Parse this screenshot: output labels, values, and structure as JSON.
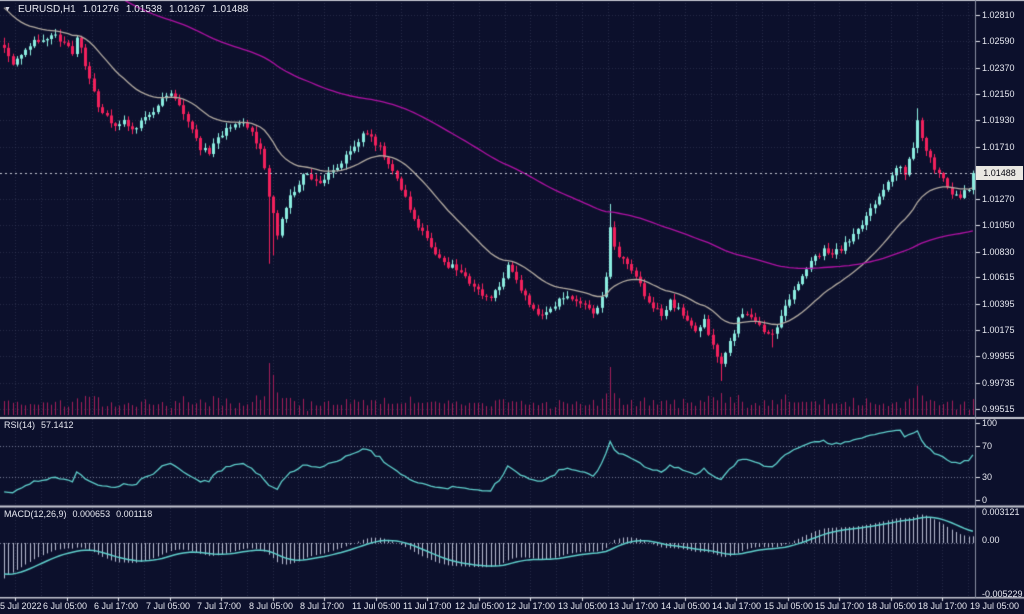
{
  "title_bar": {
    "marker": "▼",
    "symbol": "EURUSD,H1",
    "open": "1.01276",
    "high": "1.01538",
    "low": "1.01267",
    "close": "1.01488"
  },
  "colors": {
    "background": "#0c102c",
    "grid": "#43486680",
    "grid_solid": "#454a66",
    "bull": "#8bede0",
    "bear": "#f2215c",
    "volume": "#a31e58",
    "ma_fast": "#b3aba1",
    "ma_slow": "#b112a5",
    "indicator_line": "#5fcfcc",
    "macd_histogram": "#b9bdd2",
    "level_line": "#787d97",
    "separator": "#c7c9d3",
    "axis_border": "#898ea2",
    "axis_text": "#e7e8f0",
    "price_tag_bg": "#e9e7e2",
    "price_tag_text": "#05050f",
    "current_price_line": "#c3c6d2"
  },
  "chart_data": {
    "type": "candlestick",
    "title": "EURUSD,H1",
    "pair": "EURUSD",
    "timeframe": "H1",
    "ohlc_display": {
      "open": 1.01276,
      "high": 1.01538,
      "low": 1.01267,
      "close": 1.01488
    },
    "current_price": {
      "label": "1.01488",
      "value": 1.01488
    },
    "price_axis_ticks": [
      "1.02810",
      "1.02590",
      "1.02370",
      "1.02150",
      "1.01930",
      "1.01710",
      "1.01270",
      "1.01050",
      "1.00830",
      "1.00615",
      "1.00395",
      "1.00175",
      "0.99955",
      "0.99735",
      "0.99515"
    ],
    "x_labels": [
      "5 Jul 2022",
      "6 Jul 05:00",
      "6 Jul 17:00",
      "7 Jul 05:00",
      "7 Jul 17:00",
      "8 Jul 05:00",
      "8 Jul 17:00",
      "11 Jul 05:00",
      "11 Jul 17:00",
      "12 Jul 05:00",
      "12 Jul 17:00",
      "13 Jul 05:00",
      "13 Jul 17:00",
      "14 Jul 05:00",
      "14 Jul 17:00",
      "15 Jul 05:00",
      "15 Jul 17:00",
      "18 Jul 05:00",
      "18 Jul 17:00",
      "19 Jul 05:00"
    ],
    "candles": {
      "count": 228,
      "first_open": 1.0256,
      "anchor_closes": [
        [
          0,
          1.0252
        ],
        [
          2,
          1.0242
        ],
        [
          4,
          1.0247
        ],
        [
          7,
          1.0259
        ],
        [
          10,
          1.0262
        ],
        [
          12,
          1.0266
        ],
        [
          14,
          1.0256
        ],
        [
          16,
          1.025
        ],
        [
          17,
          1.0264
        ],
        [
          19,
          1.024
        ],
        [
          20,
          1.0228
        ],
        [
          22,
          1.0205
        ],
        [
          24,
          1.0196
        ],
        [
          26,
          1.0189
        ],
        [
          28,
          1.0194
        ],
        [
          30,
          1.0184
        ],
        [
          32,
          1.0191
        ],
        [
          34,
          1.0196
        ],
        [
          36,
          1.0205
        ],
        [
          38,
          1.0214
        ],
        [
          40,
          1.0212
        ],
        [
          42,
          1.0196
        ],
        [
          44,
          1.0185
        ],
        [
          46,
          1.017
        ],
        [
          48,
          1.0165
        ],
        [
          50,
          1.0178
        ],
        [
          52,
          1.0186
        ],
        [
          54,
          1.0192
        ],
        [
          56,
          1.019
        ],
        [
          58,
          1.0182
        ],
        [
          60,
          1.017
        ],
        [
          61,
          1.0152
        ],
        [
          62,
          1.0128
        ],
        [
          64,
          1.0098
        ],
        [
          65,
          1.0112
        ],
        [
          67,
          1.0128
        ],
        [
          69,
          1.014
        ],
        [
          70,
          1.015
        ],
        [
          72,
          1.0146
        ],
        [
          74,
          1.0142
        ],
        [
          76,
          1.0148
        ],
        [
          78,
          1.0155
        ],
        [
          80,
          1.0162
        ],
        [
          82,
          1.0172
        ],
        [
          84,
          1.018
        ],
        [
          86,
          1.0178
        ],
        [
          88,
          1.017
        ],
        [
          90,
          1.0158
        ],
        [
          92,
          1.0143
        ],
        [
          94,
          1.0128
        ],
        [
          96,
          1.011
        ],
        [
          98,
          1.0098
        ],
        [
          100,
          1.0088
        ],
        [
          102,
          1.0078
        ],
        [
          104,
          1.0072
        ],
        [
          106,
          1.0068
        ],
        [
          108,
          1.0062
        ],
        [
          110,
          1.0055
        ],
        [
          112,
          1.0048
        ],
        [
          114,
          1.0045
        ],
        [
          116,
          1.0052
        ],
        [
          117,
          1.0062
        ],
        [
          118,
          1.007
        ],
        [
          120,
          1.0058
        ],
        [
          122,
          1.0045
        ],
        [
          124,
          1.0036
        ],
        [
          126,
          1.003
        ],
        [
          128,
          1.0035
        ],
        [
          130,
          1.0042
        ],
        [
          132,
          1.0046
        ],
        [
          134,
          1.0044
        ],
        [
          136,
          1.0038
        ],
        [
          138,
          1.0032
        ],
        [
          140,
          1.0045
        ],
        [
          141,
          1.006
        ],
        [
          142,
          1.0105
        ],
        [
          143,
          1.0088
        ],
        [
          144,
          1.008
        ],
        [
          146,
          1.0074
        ],
        [
          148,
          1.0062
        ],
        [
          150,
          1.0048
        ],
        [
          152,
          1.0038
        ],
        [
          154,
          1.003
        ],
        [
          156,
          1.0042
        ],
        [
          158,
          1.0034
        ],
        [
          160,
          1.0026
        ],
        [
          162,
          1.0018
        ],
        [
          164,
          1.0025
        ],
        [
          166,
          1.0005
        ],
        [
          168,
          0.9988
        ],
        [
          170,
          1.0008
        ],
        [
          172,
          1.0026
        ],
        [
          174,
          1.0032
        ],
        [
          176,
          1.0024
        ],
        [
          178,
          1.0018
        ],
        [
          180,
          1.0012
        ],
        [
          182,
          1.0028
        ],
        [
          184,
          1.0044
        ],
        [
          186,
          1.0056
        ],
        [
          188,
          1.0068
        ],
        [
          190,
          1.0078
        ],
        [
          192,
          1.0084
        ],
        [
          194,
          1.008
        ],
        [
          196,
          1.0086
        ],
        [
          198,
          1.0092
        ],
        [
          200,
          1.01
        ],
        [
          202,
          1.0112
        ],
        [
          204,
          1.0124
        ],
        [
          206,
          1.0136
        ],
        [
          208,
          1.0148
        ],
        [
          210,
          1.0156
        ],
        [
          211,
          1.0148
        ],
        [
          213,
          1.017
        ],
        [
          214,
          1.0192
        ],
        [
          215,
          1.0178
        ],
        [
          216,
          1.0168
        ],
        [
          218,
          1.0152
        ],
        [
          220,
          1.0143
        ],
        [
          222,
          1.0133
        ],
        [
          224,
          1.0128
        ],
        [
          226,
          1.0136
        ],
        [
          227,
          1.01488
        ]
      ],
      "wick_overrides": [
        [
          0,
          1.0262,
          null
        ],
        [
          62,
          null,
          1.0073
        ],
        [
          63,
          null,
          1.008
        ],
        [
          142,
          1.0123,
          null
        ],
        [
          168,
          null,
          0.9975
        ],
        [
          180,
          null,
          1.0003
        ],
        [
          214,
          1.0203,
          null
        ]
      ]
    },
    "moving_averages": [
      {
        "name": "fast-ma",
        "type": "EMA",
        "period": 24,
        "seed": 1.029
      },
      {
        "name": "slow-ma",
        "type": "EMA",
        "period": 110,
        "seed": 1.0335
      }
    ],
    "rsi": {
      "name": "RSI(14)",
      "value_label": "57.1412",
      "period": 14,
      "levels": [
        70,
        30
      ],
      "axis_labels": [
        "100",
        "70",
        "30",
        "0"
      ],
      "range": [
        0,
        100
      ]
    },
    "macd": {
      "name": "MACD(12,26,9)",
      "fast": 12,
      "slow": 26,
      "signal": 9,
      "macd_value_label": "0.000653",
      "signal_value_label": "0.001118",
      "axis_labels": [
        "0.003121",
        "0.00",
        "-0.005229"
      ]
    }
  }
}
